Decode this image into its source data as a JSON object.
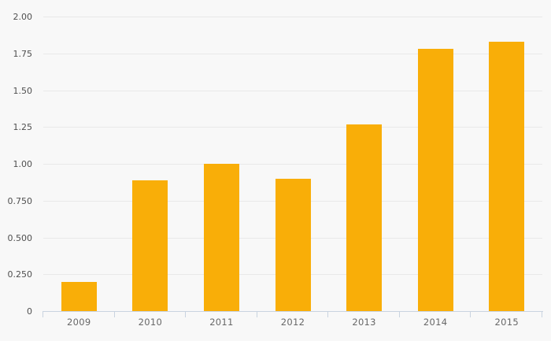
{
  "chart_data": {
    "type": "bar",
    "title": "",
    "xlabel": "",
    "ylabel": "",
    "categories": [
      "2009",
      "2010",
      "2011",
      "2012",
      "2013",
      "2014",
      "2015"
    ],
    "values": [
      0.2,
      0.89,
      1.0,
      0.9,
      1.27,
      1.78,
      1.83
    ],
    "ylim": [
      0,
      2.0
    ],
    "ytick_interval": 0.25,
    "ytick_labels": [
      "0",
      "0.250",
      "0.500",
      "0.750",
      "1.00",
      "1.25",
      "1.50",
      "1.75",
      "2.00"
    ],
    "grid": true,
    "legend": false,
    "bar_width_ratio": 0.5
  },
  "colors": {
    "background": "#f8f8f8",
    "bar": "#f9ae08",
    "gridline": "#e9e9e9",
    "axis": "#c9d3e0",
    "y_label_text": "#4f4f4f",
    "x_label_text": "#686868"
  }
}
